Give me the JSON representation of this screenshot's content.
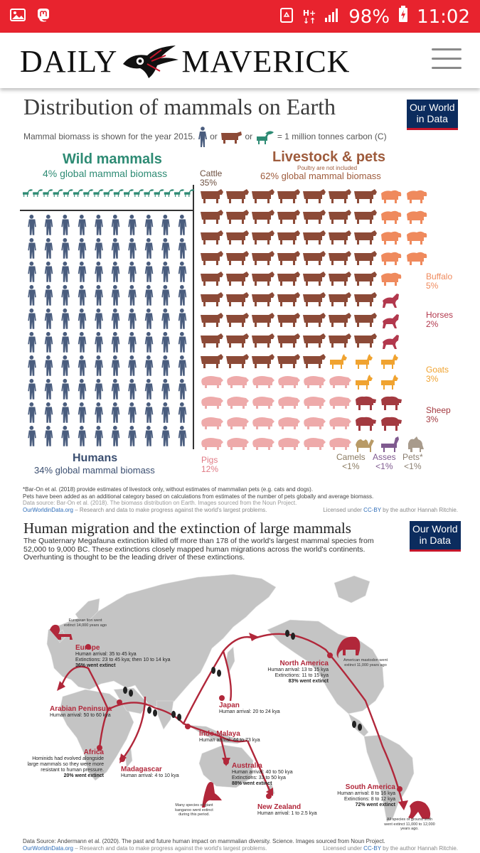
{
  "status_bar": {
    "battery": "98%",
    "time": "11:02",
    "network": "H+",
    "bg_color": "#e8232e"
  },
  "site": {
    "logo_left": "DAILY",
    "logo_right": "MAVERICK"
  },
  "badge": {
    "line1": "Our World",
    "line2": "in Data"
  },
  "infographic1": {
    "title": "Distribution of mammals on Earth",
    "subtitle_pre": "Mammal biomass is shown for the year 2015.",
    "subtitle_or1": "or",
    "subtitle_or2": "or",
    "subtitle_post": "= 1 million tonnes carbon (C)",
    "wild_title": "Wild mammals",
    "wild_sub": "4% global mammal biomass",
    "livestock_title": "Livestock & pets",
    "livestock_note": "Poultry are not included",
    "livestock_sub": "62% global mammal biomass",
    "humans_title": "Humans",
    "humans_sub": "34% global mammal biomass",
    "categories": {
      "cattle": {
        "name": "Cattle",
        "pct": "35%"
      },
      "buffalo": {
        "name": "Buffalo",
        "pct": "5%"
      },
      "horses": {
        "name": "Horses",
        "pct": "2%"
      },
      "goats": {
        "name": "Goats",
        "pct": "3%"
      },
      "sheep": {
        "name": "Sheep",
        "pct": "3%"
      },
      "pigs": {
        "name": "Pigs",
        "pct": "12%"
      },
      "camels": {
        "name": "Camels",
        "pct": "<1%"
      },
      "asses": {
        "name": "Asses",
        "pct": "<1%"
      },
      "pets": {
        "name": "Pets*",
        "pct": "<1%"
      }
    },
    "footnote1": "*Bar-On et al. (2018) provide estimates of livestock only, without estimates of mammalian pets (e.g. cats and dogs).",
    "footnote2": "Pets have been added as an additional category based on calculations from estimates of the number of pets globally and average biomass.",
    "source": "Data source: Bar-On et al. (2018). The biomass distribution on Earth. Images sourced from the Noun Project.",
    "owid_link": "OurWorldinData.org",
    "owid_tagline": " – Research and data to make progress against the world's largest problems.",
    "license_pre": "Licensed under ",
    "license_cc": "CC-BY",
    "license_post": " by the author Hannah Ritchie."
  },
  "infographic2": {
    "title": "Human migration and the extinction of large mammals",
    "paragraph": "The Quaternary Megafauna extinction killed off more than 178 of the world's largest mammal species from 52,000 to 9,000 BC. These extinctions closely mapped human migrations across the world's continents. Overhunting is thought to be the leading driver of these extinctions.",
    "regions": {
      "europe": {
        "name": "Europe",
        "arrival": "Human arrival: 35 to 45 kya",
        "extinctions": "Extinctions: 23 to 45 kya; then 10 to 14 kya",
        "extinct": "36% went extinct"
      },
      "arabia": {
        "name": "Arabian Peninsula",
        "arrival": "Human arrival: 50 to 60 kya"
      },
      "africa": {
        "name": "Africa",
        "note": "Hominids had evolved alongside large mammals so they were more resistant to human pressure.",
        "extinct": "20% went extinct"
      },
      "madagascar": {
        "name": "Madagascar",
        "arrival": "Human arrival: 4 to 10 kya"
      },
      "indomalaya": {
        "name": "Indo-Malaya",
        "arrival": "Human arrival: 44 to 73 kya"
      },
      "japan": {
        "name": "Japan",
        "arrival": "Human arrival: 20 to 24 kya"
      },
      "australia": {
        "name": "Australia",
        "arrival": "Human arrival: 40 to 50 kya",
        "extinctions": "Extinctions: 33 to 50 kya",
        "extinct": "88% went extinct"
      },
      "nz": {
        "name": "New Zealand",
        "arrival": "Human arrival: 1 to 2.5 kya"
      },
      "northamerica": {
        "name": "North America",
        "arrival": "Human arrival: 13 to 15 kya",
        "extinctions": "Extinctions: 11 to 15 kya",
        "extinct": "83% went extinct"
      },
      "southamerica": {
        "name": "South America",
        "arrival": "Human arrival: 8 to 16 kya",
        "extinctions": "Extinctions: 8 to 12 kya",
        "extinct": "72% went extinct"
      }
    },
    "notes": {
      "lion": "European lion went extinct 14,000 years ago",
      "mastodon": "American mastodon went extinct 11,000 years ago",
      "kangaroo": "Many species of giant kangaroo went extinct during this period.",
      "sloth": "All species of ground sloth went extinct 11,000 to 12,000 years ago."
    },
    "source": "Data Source: Andermann et al. (2020). The past and future human impact on mammalian diversity. Science. Images sourced from Noun Project.",
    "owid_link": "OurWorldinData.org",
    "owid_tagline": " – Research and data to make progress against the world's largest problems.",
    "license_pre": "Licensed under ",
    "license_cc": "CC-BY",
    "license_post": " by the author Hannah Ritchie."
  },
  "colors": {
    "human": "#4a5d7e",
    "wild": "#2e8b74",
    "cattle": "#8c4a37",
    "buffalo": "#ef8a5d",
    "horse": "#b2384d",
    "goat": "#f0a330",
    "sheep": "#a33a40",
    "pig": "#eeaaaa",
    "camel": "#b89a66",
    "ass": "#7f5a8f",
    "pet": "#a89b8c",
    "route": "#b1273a",
    "land": "#c4c4c4"
  }
}
